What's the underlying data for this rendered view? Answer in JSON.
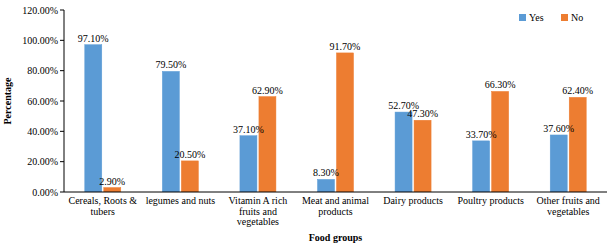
{
  "chart_data": {
    "type": "bar",
    "x_label": "Food groups",
    "y_label": "Percentage",
    "categories": [
      "Cereals, Roots & tubers",
      "legumes and nuts",
      "Vitamin A rich fruits and vegetables",
      "Meat and animal products",
      "Dairy products",
      "Poultry products",
      "Other fruits and vegetables"
    ],
    "series": [
      {
        "name": "Yes",
        "color": "#5b9bd5",
        "values": [
          97.1,
          79.5,
          37.1,
          8.3,
          52.7,
          33.7,
          37.6
        ],
        "value_labels": [
          "97.10%",
          "79.50%",
          "37.10%",
          "8.30%",
          "52.70%",
          "33.70%",
          "37.60%"
        ]
      },
      {
        "name": "No",
        "color": "#ed7d31",
        "values": [
          2.9,
          20.5,
          62.9,
          91.7,
          47.3,
          66.3,
          62.4
        ],
        "value_labels": [
          "2.90%",
          "20.50%",
          "62.90%",
          "91.70%",
          "47.30%",
          "66.30%",
          "62.40%"
        ]
      }
    ],
    "ylim": [
      0,
      120
    ],
    "yticks": [
      {
        "value": 0,
        "label": "0.00%"
      },
      {
        "value": 20,
        "label": "20.00%"
      },
      {
        "value": 40,
        "label": "40.00%"
      },
      {
        "value": 60,
        "label": "60.00%"
      },
      {
        "value": 80,
        "label": "80.00%"
      },
      {
        "value": 100,
        "label": "100.00%"
      },
      {
        "value": 120,
        "label": "120.00%"
      }
    ],
    "grid": false,
    "legend": "top-right",
    "data_labels": true
  }
}
